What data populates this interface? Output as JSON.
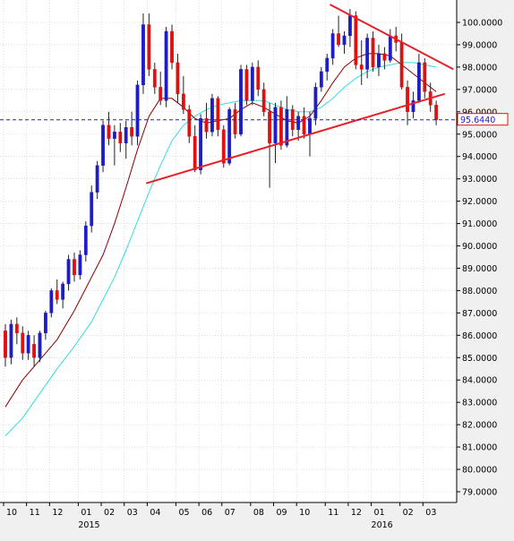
{
  "chart_data": {
    "type": "candlestick",
    "interval": "weekly",
    "ylim": [
      78.5,
      100.9
    ],
    "y_ticks": [
      "79.0000",
      "80.0000",
      "81.0000",
      "82.0000",
      "83.0000",
      "84.0000",
      "85.0000",
      "86.0000",
      "87.0000",
      "88.0000",
      "89.0000",
      "90.0000",
      "91.0000",
      "92.0000",
      "93.0000",
      "94.0000",
      "95.0000",
      "96.0000",
      "97.0000",
      "98.0000",
      "99.0000",
      "100.0000"
    ],
    "x_month_labels": [
      {
        "label": "10",
        "week": 0
      },
      {
        "label": "11",
        "week": 4
      },
      {
        "label": "12",
        "week": 8
      },
      {
        "label": "01",
        "week": 13
      },
      {
        "label": "02",
        "week": 17
      },
      {
        "label": "03",
        "week": 21
      },
      {
        "label": "04",
        "week": 25
      },
      {
        "label": "05",
        "week": 30
      },
      {
        "label": "06",
        "week": 34
      },
      {
        "label": "07",
        "week": 38
      },
      {
        "label": "08",
        "week": 43
      },
      {
        "label": "09",
        "week": 47
      },
      {
        "label": "10",
        "week": 51
      },
      {
        "label": "11",
        "week": 56
      },
      {
        "label": "12",
        "week": 60
      },
      {
        "label": "01",
        "week": 64
      },
      {
        "label": "02",
        "week": 69
      },
      {
        "label": "03",
        "week": 73
      }
    ],
    "x_year_labels": [
      {
        "label": "2015",
        "week": 13
      },
      {
        "label": "2016",
        "week": 64
      }
    ],
    "current_price": "95.6440",
    "current_value": 95.644,
    "colors": {
      "bull": "#1c1cc8",
      "bear": "#e01010",
      "ma_short": "#8b0000",
      "ma_long": "#33dddd",
      "trendline": "#e8202a",
      "price_line": "#1a1ad0"
    },
    "candles": [
      [
        86.2,
        86.5,
        84.6,
        85.0
      ],
      [
        85.0,
        86.7,
        84.7,
        86.5
      ],
      [
        86.5,
        86.8,
        85.6,
        86.1
      ],
      [
        86.1,
        86.4,
        84.9,
        85.2
      ],
      [
        85.2,
        86.2,
        84.9,
        86.0
      ],
      [
        85.6,
        86.0,
        84.6,
        85.0
      ],
      [
        85.0,
        86.2,
        84.8,
        86.1
      ],
      [
        86.1,
        87.1,
        85.8,
        87.0
      ],
      [
        87.0,
        88.1,
        86.8,
        88.0
      ],
      [
        88.0,
        88.5,
        87.4,
        87.6
      ],
      [
        87.6,
        88.4,
        87.2,
        88.3
      ],
      [
        88.3,
        89.6,
        88.0,
        89.4
      ],
      [
        89.4,
        89.7,
        88.4,
        88.7
      ],
      [
        88.7,
        89.8,
        88.5,
        89.6
      ],
      [
        89.6,
        91.1,
        89.3,
        90.9
      ],
      [
        90.9,
        92.7,
        90.6,
        92.4
      ],
      [
        92.4,
        93.8,
        92.1,
        93.6
      ],
      [
        93.6,
        95.6,
        93.3,
        95.4
      ],
      [
        95.4,
        96.0,
        94.5,
        94.8
      ],
      [
        94.8,
        95.4,
        93.6,
        95.1
      ],
      [
        95.1,
        95.5,
        94.2,
        94.6
      ],
      [
        94.6,
        95.6,
        93.9,
        95.3
      ],
      [
        95.3,
        96.0,
        94.5,
        94.9
      ],
      [
        94.9,
        97.4,
        94.5,
        97.2
      ],
      [
        97.2,
        100.4,
        96.8,
        99.9
      ],
      [
        99.9,
        100.4,
        97.6,
        97.9
      ],
      [
        97.9,
        98.2,
        96.8,
        97.1
      ],
      [
        97.1,
        97.8,
        96.3,
        96.5
      ],
      [
        96.5,
        99.8,
        96.2,
        99.6
      ],
      [
        99.6,
        99.9,
        97.9,
        98.2
      ],
      [
        98.2,
        98.6,
        96.4,
        96.8
      ],
      [
        96.8,
        97.6,
        95.9,
        96.1
      ],
      [
        96.1,
        96.3,
        94.6,
        94.9
      ],
      [
        94.9,
        95.4,
        93.3,
        93.4
      ],
      [
        93.4,
        95.9,
        93.2,
        95.7
      ],
      [
        95.7,
        96.4,
        94.8,
        95.1
      ],
      [
        95.1,
        96.8,
        94.9,
        96.6
      ],
      [
        96.6,
        96.7,
        94.9,
        95.2
      ],
      [
        95.2,
        95.4,
        93.5,
        93.7
      ],
      [
        93.7,
        96.2,
        93.6,
        96.1
      ],
      [
        96.1,
        96.4,
        94.8,
        95.0
      ],
      [
        95.0,
        98.1,
        94.9,
        97.9
      ],
      [
        97.9,
        98.1,
        96.3,
        96.5
      ],
      [
        96.5,
        98.2,
        96.3,
        98.0
      ],
      [
        98.0,
        98.3,
        96.7,
        97.0
      ],
      [
        97.0,
        97.3,
        95.8,
        96.0
      ],
      [
        96.0,
        96.4,
        92.6,
        94.6
      ],
      [
        94.6,
        96.4,
        93.7,
        96.2
      ],
      [
        96.2,
        96.5,
        94.3,
        94.5
      ],
      [
        94.5,
        96.7,
        94.4,
        96.1
      ],
      [
        96.1,
        96.3,
        94.9,
        95.2
      ],
      [
        95.2,
        96.0,
        94.7,
        95.8
      ],
      [
        95.8,
        96.2,
        94.8,
        95.0
      ],
      [
        95.0,
        96.0,
        94.0,
        95.7
      ],
      [
        95.7,
        97.3,
        95.4,
        97.1
      ],
      [
        97.1,
        98.0,
        96.9,
        97.8
      ],
      [
        97.8,
        98.6,
        97.4,
        98.4
      ],
      [
        98.4,
        99.7,
        98.1,
        99.5
      ],
      [
        99.5,
        100.3,
        98.9,
        99.0
      ],
      [
        99.0,
        99.6,
        98.6,
        99.4
      ],
      [
        99.4,
        100.6,
        98.9,
        100.3
      ],
      [
        100.3,
        100.5,
        97.9,
        98.1
      ],
      [
        98.1,
        99.2,
        97.2,
        97.9
      ],
      [
        97.9,
        99.5,
        97.5,
        99.3
      ],
      [
        99.3,
        99.6,
        97.8,
        98.0
      ],
      [
        98.0,
        99.0,
        97.6,
        98.6
      ],
      [
        98.6,
        98.9,
        97.9,
        98.3
      ],
      [
        98.3,
        99.7,
        98.2,
        99.4
      ],
      [
        99.4,
        99.8,
        98.7,
        99.1
      ],
      [
        99.1,
        99.5,
        97.0,
        97.1
      ],
      [
        97.1,
        97.4,
        95.4,
        96.0
      ],
      [
        96.0,
        96.9,
        95.7,
        96.5
      ],
      [
        96.5,
        98.6,
        96.4,
        98.2
      ],
      [
        98.2,
        98.4,
        96.6,
        96.9
      ],
      [
        96.9,
        97.3,
        96.0,
        96.3
      ],
      [
        96.3,
        96.5,
        95.4,
        95.644
      ]
    ],
    "ma_short": [
      [
        0,
        82.8
      ],
      [
        3,
        84.0
      ],
      [
        6,
        84.9
      ],
      [
        9,
        85.8
      ],
      [
        12,
        87.1
      ],
      [
        15,
        88.6
      ],
      [
        17,
        89.6
      ],
      [
        19,
        91.0
      ],
      [
        21,
        92.6
      ],
      [
        23,
        94.3
      ],
      [
        25,
        95.8
      ],
      [
        27,
        96.6
      ],
      [
        29,
        96.6
      ],
      [
        31,
        96.2
      ],
      [
        33,
        95.7
      ],
      [
        35,
        95.5
      ],
      [
        37,
        95.6
      ],
      [
        39,
        95.7
      ],
      [
        41,
        96.1
      ],
      [
        43,
        96.4
      ],
      [
        45,
        96.2
      ],
      [
        47,
        95.9
      ],
      [
        49,
        95.6
      ],
      [
        51,
        95.5
      ],
      [
        53,
        95.8
      ],
      [
        55,
        96.5
      ],
      [
        57,
        97.3
      ],
      [
        59,
        98.0
      ],
      [
        61,
        98.4
      ],
      [
        63,
        98.6
      ],
      [
        65,
        98.6
      ],
      [
        67,
        98.5
      ],
      [
        69,
        98.1
      ],
      [
        71,
        97.7
      ],
      [
        73,
        97.3
      ],
      [
        75,
        96.9
      ]
    ],
    "ma_long": [
      [
        0,
        81.5
      ],
      [
        3,
        82.3
      ],
      [
        6,
        83.4
      ],
      [
        9,
        84.5
      ],
      [
        12,
        85.5
      ],
      [
        15,
        86.6
      ],
      [
        17,
        87.6
      ],
      [
        19,
        88.6
      ],
      [
        21,
        89.8
      ],
      [
        23,
        91.1
      ],
      [
        25,
        92.4
      ],
      [
        27,
        93.6
      ],
      [
        29,
        94.7
      ],
      [
        31,
        95.4
      ],
      [
        33,
        95.8
      ],
      [
        35,
        96.1
      ],
      [
        37,
        96.3
      ],
      [
        39,
        96.4
      ],
      [
        41,
        96.5
      ],
      [
        43,
        96.5
      ],
      [
        45,
        96.5
      ],
      [
        47,
        96.3
      ],
      [
        49,
        96.1
      ],
      [
        51,
        96.0
      ],
      [
        53,
        96.0
      ],
      [
        55,
        96.2
      ],
      [
        57,
        96.6
      ],
      [
        59,
        97.1
      ],
      [
        61,
        97.5
      ],
      [
        63,
        97.8
      ],
      [
        65,
        98.0
      ],
      [
        67,
        98.1
      ],
      [
        69,
        98.2
      ],
      [
        71,
        98.2
      ],
      [
        73,
        98.1
      ],
      [
        75,
        98.0
      ]
    ],
    "trendlines": [
      {
        "from": [
          24.5,
          92.8
        ],
        "to": [
          76.5,
          96.8
        ]
      },
      {
        "from": [
          56.5,
          100.8
        ],
        "to": [
          78.0,
          97.9
        ]
      }
    ]
  }
}
